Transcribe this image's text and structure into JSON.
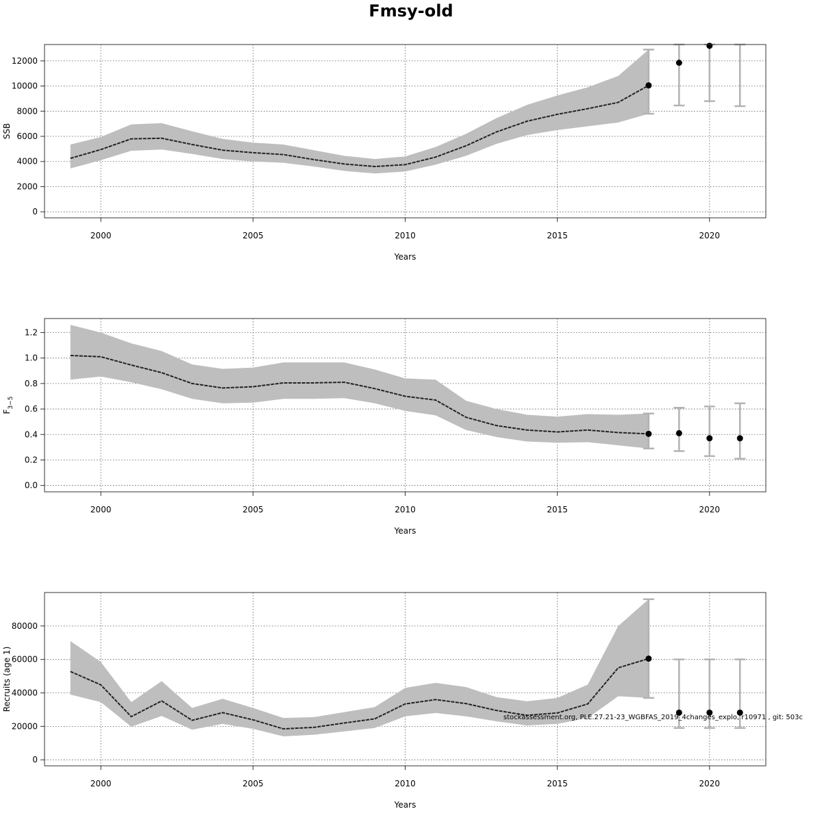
{
  "title": "Fmsy-old",
  "footer_note": "stockassessment.org, PLE.27.21-23_WGBFAS_2019_4changes_explo, r10971 , git: 503c",
  "colors": {
    "band": "#bebebe",
    "line": "#222222",
    "point": "#000000",
    "errorbar": "#b3b3b3",
    "grid": "#555555"
  },
  "chart_data": [
    {
      "type": "line",
      "title": "",
      "xlabel": "Years",
      "ylabel": "SSB",
      "xlim": [
        1998.15,
        2021.85
      ],
      "ylim": [
        -480,
        13300
      ],
      "xticks": [
        2000,
        2005,
        2010,
        2015,
        2020
      ],
      "yticks": [
        0,
        2000,
        4000,
        6000,
        8000,
        10000,
        12000
      ],
      "grid": true,
      "x": [
        1999,
        2000,
        2001,
        2002,
        2003,
        2004,
        2005,
        2006,
        2007,
        2008,
        2009,
        2010,
        2011,
        2012,
        2013,
        2014,
        2015,
        2016,
        2017,
        2018
      ],
      "estimate": [
        4250,
        4950,
        5800,
        5850,
        5350,
        4900,
        4700,
        4550,
        4150,
        3800,
        3600,
        3750,
        4350,
        5250,
        6350,
        7200,
        7750,
        8200,
        8700,
        10050
      ],
      "lower": [
        3450,
        4100,
        4850,
        4950,
        4600,
        4200,
        4000,
        3900,
        3600,
        3250,
        3050,
        3200,
        3750,
        4450,
        5400,
        6100,
        6500,
        6800,
        7100,
        7800
      ],
      "upper": [
        5350,
        5950,
        6950,
        7050,
        6400,
        5800,
        5500,
        5350,
        4900,
        4450,
        4200,
        4400,
        5150,
        6200,
        7450,
        8500,
        9250,
        9900,
        10800,
        12900
      ],
      "forecast": {
        "x": [
          2019,
          2020,
          2021
        ],
        "estimate": [
          11850,
          13200,
          null
        ],
        "lower": [
          8450,
          8800,
          8400
        ],
        "upper": [
          13300,
          13300,
          13300
        ]
      }
    },
    {
      "type": "line",
      "title": "",
      "xlabel": "Years",
      "ylabel": "F",
      "ylabel_subscript": "3−5",
      "xlim": [
        1998.15,
        2021.85
      ],
      "ylim": [
        -0.05,
        1.31
      ],
      "xticks": [
        2000,
        2005,
        2010,
        2015,
        2020
      ],
      "yticks": [
        0.0,
        0.2,
        0.4,
        0.6,
        0.8,
        1.0,
        1.2
      ],
      "ytick_labels": [
        "0.0",
        "0.2",
        "0.4",
        "0.6",
        "0.8",
        "1.0",
        "1.2"
      ],
      "grid": true,
      "x": [
        1999,
        2000,
        2001,
        2002,
        2003,
        2004,
        2005,
        2006,
        2007,
        2008,
        2009,
        2010,
        2011,
        2012,
        2013,
        2014,
        2015,
        2016,
        2017,
        2018
      ],
      "estimate": [
        1.02,
        1.01,
        0.945,
        0.885,
        0.8,
        0.765,
        0.775,
        0.805,
        0.805,
        0.81,
        0.76,
        0.7,
        0.67,
        0.535,
        0.47,
        0.435,
        0.42,
        0.435,
        0.415,
        0.405
      ],
      "lower": [
        0.83,
        0.855,
        0.81,
        0.755,
        0.68,
        0.645,
        0.65,
        0.68,
        0.68,
        0.685,
        0.645,
        0.585,
        0.55,
        0.435,
        0.38,
        0.345,
        0.335,
        0.34,
        0.315,
        0.29
      ],
      "upper": [
        1.26,
        1.2,
        1.115,
        1.055,
        0.95,
        0.915,
        0.925,
        0.965,
        0.965,
        0.965,
        0.91,
        0.84,
        0.83,
        0.665,
        0.6,
        0.555,
        0.54,
        0.56,
        0.555,
        0.565
      ],
      "forecast": {
        "x": [
          2019,
          2020,
          2021
        ],
        "estimate": [
          0.41,
          0.37,
          0.37
        ],
        "lower": [
          0.27,
          0.23,
          0.21
        ],
        "upper": [
          0.61,
          0.62,
          0.645
        ]
      }
    },
    {
      "type": "line",
      "title": "",
      "xlabel": "Years",
      "ylabel": "Recruits (age 1)",
      "xlim": [
        1998.15,
        2021.85
      ],
      "ylim": [
        -3600,
        100000
      ],
      "xticks": [
        2000,
        2005,
        2010,
        2015,
        2020
      ],
      "yticks": [
        0,
        20000,
        40000,
        60000,
        80000
      ],
      "grid": true,
      "x": [
        1999,
        2000,
        2001,
        2002,
        2003,
        2004,
        2005,
        2006,
        2007,
        2008,
        2009,
        2010,
        2011,
        2012,
        2013,
        2014,
        2015,
        2016,
        2017,
        2018
      ],
      "estimate": [
        52800,
        44800,
        25800,
        35200,
        23600,
        28200,
        23900,
        18500,
        19400,
        22000,
        24500,
        33400,
        36000,
        33600,
        29500,
        26600,
        28000,
        33400,
        55000,
        60500
      ],
      "lower": [
        39000,
        34500,
        19800,
        26200,
        18000,
        21500,
        18500,
        14000,
        15000,
        17000,
        19000,
        26000,
        28000,
        26000,
        23000,
        20500,
        21500,
        25000,
        38000,
        37000
      ],
      "upper": [
        71000,
        58500,
        34500,
        47000,
        31000,
        36500,
        31000,
        25000,
        25500,
        28500,
        31500,
        43000,
        46000,
        43500,
        37500,
        35000,
        37000,
        45000,
        80000,
        96000
      ],
      "forecast": {
        "x": [
          2019,
          2020,
          2021
        ],
        "estimate": [
          28200,
          28200,
          28200
        ],
        "lower": [
          19000,
          19000,
          19000
        ],
        "upper": [
          60000,
          60000,
          60000
        ]
      }
    }
  ]
}
